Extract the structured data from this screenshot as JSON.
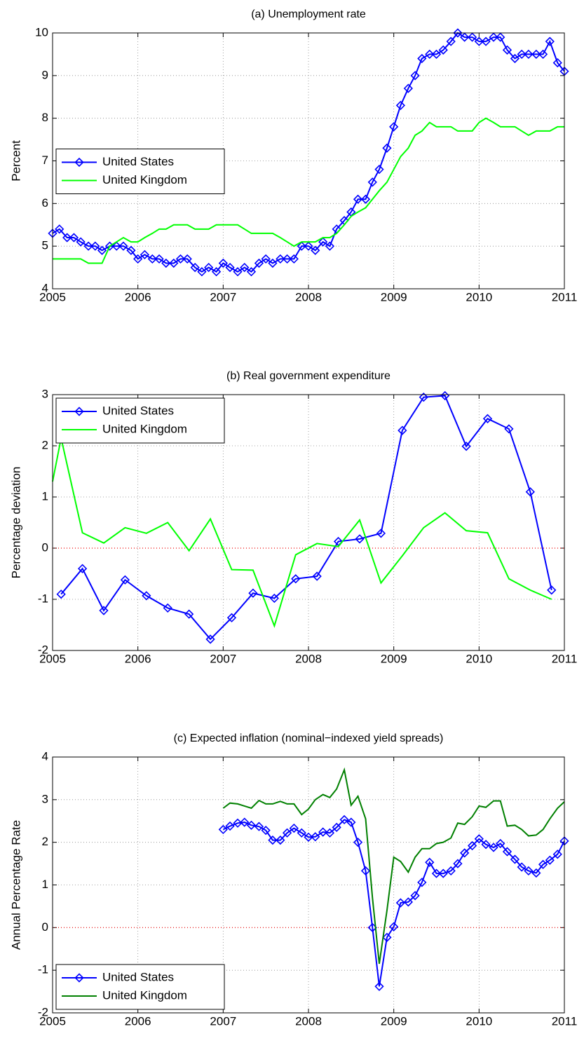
{
  "chart_data": [
    {
      "type": "line",
      "title": "(a) Unemployment rate",
      "ylabel": "Percent",
      "x": [
        2005,
        2005.08,
        2005.17,
        2005.25,
        2005.33,
        2005.42,
        2005.5,
        2005.58,
        2005.67,
        2005.75,
        2005.83,
        2005.92,
        2006,
        2006.08,
        2006.17,
        2006.25,
        2006.33,
        2006.42,
        2006.5,
        2006.58,
        2006.67,
        2006.75,
        2006.83,
        2006.92,
        2007,
        2007.08,
        2007.17,
        2007.25,
        2007.33,
        2007.42,
        2007.5,
        2007.58,
        2007.67,
        2007.75,
        2007.83,
        2007.92,
        2008,
        2008.08,
        2008.17,
        2008.25,
        2008.33,
        2008.42,
        2008.5,
        2008.58,
        2008.67,
        2008.75,
        2008.83,
        2008.92,
        2009,
        2009.08,
        2009.17,
        2009.25,
        2009.33,
        2009.42,
        2009.5,
        2009.58,
        2009.67,
        2009.75,
        2009.83,
        2009.92,
        2010,
        2010.08,
        2010.17,
        2010.25,
        2010.33,
        2010.42,
        2010.5,
        2010.58,
        2010.67,
        2010.75,
        2010.83,
        2010.92,
        2011
      ],
      "series": [
        {
          "name": "United States",
          "color": "#0000ff",
          "marker": "diamond",
          "values": [
            5.3,
            5.4,
            5.2,
            5.2,
            5.1,
            5.0,
            5.0,
            4.9,
            5.0,
            5.0,
            5.0,
            4.9,
            4.7,
            4.8,
            4.7,
            4.7,
            4.6,
            4.6,
            4.7,
            4.7,
            4.5,
            4.4,
            4.5,
            4.4,
            4.6,
            4.5,
            4.4,
            4.5,
            4.4,
            4.6,
            4.7,
            4.6,
            4.7,
            4.7,
            4.7,
            5.0,
            5.0,
            4.9,
            5.1,
            5.0,
            5.4,
            5.6,
            5.8,
            6.1,
            6.1,
            6.5,
            6.8,
            7.3,
            7.8,
            8.3,
            8.7,
            9.0,
            9.4,
            9.5,
            9.5,
            9.6,
            9.8,
            10.0,
            9.9,
            9.9,
            9.8,
            9.8,
            9.9,
            9.9,
            9.6,
            9.4,
            9.5,
            9.5,
            9.5,
            9.5,
            9.8,
            9.3,
            9.1
          ]
        },
        {
          "name": "United Kingdom",
          "color": "#00ff00",
          "values": [
            4.7,
            4.7,
            4.7,
            4.7,
            4.7,
            4.6,
            4.6,
            4.6,
            5.0,
            5.1,
            5.2,
            5.1,
            5.1,
            5.2,
            5.3,
            5.4,
            5.4,
            5.5,
            5.5,
            5.5,
            5.4,
            5.4,
            5.4,
            5.5,
            5.5,
            5.5,
            5.5,
            5.4,
            5.3,
            5.3,
            5.3,
            5.3,
            5.2,
            5.1,
            5.0,
            5.1,
            5.1,
            5.1,
            5.2,
            5.2,
            5.3,
            5.5,
            5.7,
            5.8,
            5.9,
            6.1,
            6.3,
            6.5,
            6.8,
            7.1,
            7.3,
            7.6,
            7.7,
            7.9,
            7.8,
            7.8,
            7.8,
            7.7,
            7.7,
            7.7,
            7.9,
            8.0,
            7.9,
            7.8,
            7.8,
            7.8,
            7.7,
            7.6,
            7.7,
            7.7,
            7.7,
            7.8,
            7.8
          ]
        }
      ],
      "xlim": [
        2005,
        2011
      ],
      "xticks": [
        2005,
        2006,
        2007,
        2008,
        2009,
        2010,
        2011
      ],
      "ylim": [
        4,
        10
      ],
      "yticks": [
        4,
        5,
        6,
        7,
        8,
        9,
        10
      ],
      "grid": true,
      "legend": "center left"
    },
    {
      "type": "line",
      "title": "(b) Real government expenditure",
      "ylabel": "Percentage deviation",
      "x": [
        2005,
        2005.1,
        2005.35,
        2005.6,
        2005.85,
        2006.1,
        2006.35,
        2006.6,
        2006.85,
        2007.1,
        2007.35,
        2007.6,
        2007.85,
        2008.1,
        2008.35,
        2008.6,
        2008.85,
        2009.1,
        2009.35,
        2009.6,
        2009.85,
        2010.1,
        2010.35,
        2010.6,
        2010.85
      ],
      "series": [
        {
          "name": "United States",
          "color": "#0000ff",
          "marker": "diamond",
          "values": [
            null,
            -0.9,
            -0.4,
            -1.22,
            -0.62,
            -0.93,
            -1.17,
            -1.29,
            -1.78,
            -1.36,
            -0.88,
            -0.98,
            -0.6,
            -0.55,
            0.13,
            0.18,
            0.29,
            2.3,
            2.95,
            2.98,
            1.99,
            2.53,
            2.33,
            1.1,
            -0.82
          ]
        },
        {
          "name": "United Kingdom",
          "color": "#00ff00",
          "values": [
            1.3,
            2.15,
            0.3,
            0.1,
            0.4,
            0.29,
            0.5,
            -0.05,
            0.57,
            -0.42,
            -0.43,
            -1.52,
            -0.13,
            0.09,
            0.03,
            0.55,
            -0.68,
            -0.15,
            0.4,
            0.69,
            0.34,
            0.3,
            -0.6,
            -0.82,
            -1.0
          ]
        }
      ],
      "xlim": [
        2005,
        2011
      ],
      "xticks": [
        2005,
        2006,
        2007,
        2008,
        2009,
        2010,
        2011
      ],
      "ylim": [
        -2,
        3
      ],
      "yticks": [
        -2,
        -1,
        0,
        1,
        2,
        3
      ],
      "grid": true,
      "zero_line": true,
      "legend": "upper left"
    },
    {
      "type": "line",
      "title": "(c) Expected inflation (nominal−indexed yield spreads)",
      "ylabel": "Annual Percentage Rate",
      "x": [
        2007,
        2007.08,
        2007.17,
        2007.25,
        2007.33,
        2007.42,
        2007.5,
        2007.58,
        2007.67,
        2007.75,
        2007.83,
        2007.92,
        2008,
        2008.08,
        2008.17,
        2008.25,
        2008.33,
        2008.42,
        2008.5,
        2008.58,
        2008.67,
        2008.75,
        2008.83,
        2008.92,
        2009,
        2009.08,
        2009.17,
        2009.25,
        2009.33,
        2009.42,
        2009.5,
        2009.58,
        2009.67,
        2009.75,
        2009.83,
        2009.92,
        2010,
        2010.08,
        2010.17,
        2010.25,
        2010.33,
        2010.42,
        2010.5,
        2010.58,
        2010.67,
        2010.75,
        2010.83,
        2010.92,
        2011
      ],
      "series": [
        {
          "name": "United States",
          "color": "#0000ff",
          "marker": "diamond",
          "values": [
            2.3,
            2.38,
            2.45,
            2.47,
            2.4,
            2.37,
            2.28,
            2.05,
            2.05,
            2.22,
            2.33,
            2.22,
            2.12,
            2.13,
            2.24,
            2.22,
            2.35,
            2.53,
            2.47,
            2.0,
            1.33,
            0,
            -1.38,
            -0.23,
            0.02,
            0.58,
            0.6,
            0.75,
            1.06,
            1.53,
            1.27,
            1.27,
            1.33,
            1.5,
            1.75,
            1.92,
            2.08,
            1.95,
            1.88,
            1.97,
            1.78,
            1.6,
            1.42,
            1.33,
            1.28,
            1.48,
            1.58,
            1.72,
            2.03
          ]
        },
        {
          "name": "United Kingdom",
          "color": "#008000",
          "values": [
            2.8,
            2.92,
            2.9,
            2.85,
            2.8,
            2.98,
            2.9,
            2.9,
            2.96,
            2.9,
            2.9,
            2.65,
            2.78,
            3.0,
            3.12,
            3.05,
            3.25,
            3.7,
            2.87,
            3.08,
            2.55,
            0.7,
            -0.85,
            0.4,
            1.65,
            1.55,
            1.3,
            1.65,
            1.85,
            1.85,
            1.97,
            2.0,
            2.1,
            2.45,
            2.42,
            2.6,
            2.85,
            2.82,
            2.97,
            2.97,
            2.38,
            2.4,
            2.3,
            2.15,
            2.17,
            2.3,
            2.55,
            2.8,
            2.95
          ]
        }
      ],
      "xlim": [
        2005,
        2011
      ],
      "xticks": [
        2005,
        2006,
        2007,
        2008,
        2009,
        2010,
        2011
      ],
      "ylim": [
        -2,
        4
      ],
      "yticks": [
        -2,
        -1,
        0,
        1,
        2,
        3,
        4
      ],
      "grid": true,
      "zero_line": true,
      "legend": "lower left"
    }
  ]
}
